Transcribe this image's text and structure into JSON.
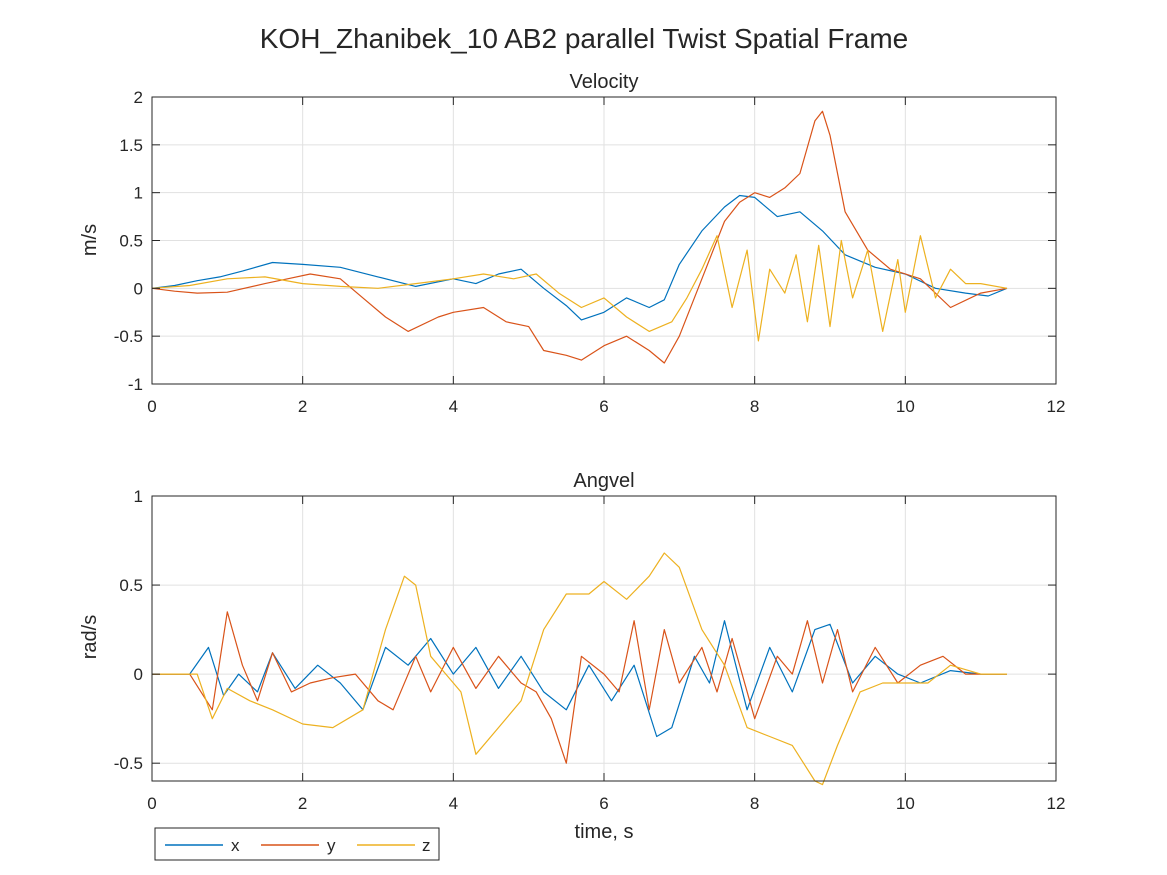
{
  "figure_title": "KOH_Zhanibek_10 AB2 parallel Twist Spatial Frame",
  "legend": {
    "entries": [
      {
        "label": "x",
        "color": "#0072BD"
      },
      {
        "label": "y",
        "color": "#D95319"
      },
      {
        "label": "z",
        "color": "#EDB120"
      }
    ],
    "placement": "bottom-left"
  },
  "chart_data": [
    {
      "type": "line",
      "title": "Velocity",
      "xlabel": "",
      "ylabel": "m/s",
      "xlim": [
        0,
        12
      ],
      "ylim": [
        -1,
        2
      ],
      "xticks": [
        0,
        2,
        4,
        6,
        8,
        10,
        12
      ],
      "yticks": [
        -1,
        -0.5,
        0,
        0.5,
        1,
        1.5,
        2
      ],
      "xtick_labels": [
        "0",
        "2",
        "4",
        "6",
        "8",
        "10",
        "12"
      ],
      "ytick_labels": [
        "-1",
        "-0.5",
        "0",
        "0.5",
        "1",
        "1.5",
        "2"
      ],
      "grid": true,
      "series": [
        {
          "name": "x",
          "color": "#0072BD",
          "x": [
            0,
            0.3,
            0.6,
            0.9,
            1.2,
            1.6,
            2.0,
            2.5,
            3.0,
            3.5,
            4.0,
            4.3,
            4.6,
            4.9,
            5.2,
            5.5,
            5.7,
            6.0,
            6.3,
            6.6,
            6.8,
            7.0,
            7.3,
            7.6,
            7.8,
            8.0,
            8.3,
            8.6,
            8.9,
            9.2,
            9.6,
            10.0,
            10.4,
            10.8,
            11.1,
            11.35
          ],
          "y": [
            0,
            0.03,
            0.08,
            0.12,
            0.18,
            0.27,
            0.25,
            0.22,
            0.12,
            0.02,
            0.1,
            0.05,
            0.15,
            0.2,
            0.0,
            -0.18,
            -0.33,
            -0.25,
            -0.1,
            -0.2,
            -0.12,
            0.25,
            0.6,
            0.85,
            0.97,
            0.95,
            0.75,
            0.8,
            0.6,
            0.35,
            0.22,
            0.15,
            0.0,
            -0.05,
            -0.08,
            0.0
          ]
        },
        {
          "name": "y",
          "color": "#D95319",
          "x": [
            0,
            0.3,
            0.6,
            1.0,
            1.5,
            1.8,
            2.1,
            2.5,
            2.8,
            3.1,
            3.4,
            3.8,
            4.0,
            4.4,
            4.7,
            5.0,
            5.2,
            5.5,
            5.7,
            6.0,
            6.3,
            6.6,
            6.8,
            7.0,
            7.3,
            7.6,
            7.8,
            8.0,
            8.2,
            8.4,
            8.6,
            8.8,
            8.9,
            9.0,
            9.2,
            9.5,
            9.8,
            10.2,
            10.6,
            11.0,
            11.35
          ],
          "y": [
            0,
            -0.03,
            -0.05,
            -0.04,
            0.05,
            0.1,
            0.15,
            0.1,
            -0.1,
            -0.3,
            -0.45,
            -0.3,
            -0.25,
            -0.2,
            -0.35,
            -0.4,
            -0.65,
            -0.7,
            -0.75,
            -0.6,
            -0.5,
            -0.65,
            -0.78,
            -0.5,
            0.1,
            0.7,
            0.9,
            1.0,
            0.95,
            1.05,
            1.2,
            1.75,
            1.85,
            1.6,
            0.8,
            0.4,
            0.2,
            0.1,
            -0.2,
            -0.05,
            0.0
          ]
        },
        {
          "name": "z",
          "color": "#EDB120",
          "x": [
            0,
            0.5,
            1.0,
            1.5,
            2.0,
            2.5,
            3.0,
            3.5,
            4.0,
            4.4,
            4.8,
            5.1,
            5.4,
            5.7,
            6.0,
            6.3,
            6.6,
            6.9,
            7.1,
            7.3,
            7.5,
            7.7,
            7.9,
            8.05,
            8.2,
            8.4,
            8.55,
            8.7,
            8.85,
            9.0,
            9.15,
            9.3,
            9.5,
            9.7,
            9.9,
            10.0,
            10.2,
            10.4,
            10.6,
            10.8,
            11.0,
            11.35
          ],
          "y": [
            0,
            0.03,
            0.1,
            0.12,
            0.05,
            0.02,
            0.0,
            0.05,
            0.1,
            0.15,
            0.1,
            0.15,
            -0.05,
            -0.2,
            -0.1,
            -0.3,
            -0.45,
            -0.35,
            -0.1,
            0.2,
            0.55,
            -0.2,
            0.4,
            -0.55,
            0.2,
            -0.05,
            0.35,
            -0.35,
            0.45,
            -0.4,
            0.5,
            -0.1,
            0.4,
            -0.45,
            0.3,
            -0.25,
            0.55,
            -0.1,
            0.2,
            0.05,
            0.05,
            0.0
          ]
        }
      ]
    },
    {
      "type": "line",
      "title": "Angvel",
      "xlabel": "time, s",
      "ylabel": "rad/s",
      "xlim": [
        0,
        12
      ],
      "ylim": [
        -0.6,
        1
      ],
      "xticks": [
        0,
        2,
        4,
        6,
        8,
        10,
        12
      ],
      "yticks": [
        -0.5,
        0,
        0.5,
        1
      ],
      "xtick_labels": [
        "0",
        "2",
        "4",
        "6",
        "8",
        "10",
        "12"
      ],
      "ytick_labels": [
        "-0.5",
        "0",
        "0.5",
        "1"
      ],
      "grid": true,
      "series": [
        {
          "name": "x",
          "color": "#0072BD",
          "x": [
            0,
            0.5,
            0.75,
            0.95,
            1.15,
            1.4,
            1.6,
            1.9,
            2.2,
            2.5,
            2.8,
            3.1,
            3.4,
            3.7,
            4.0,
            4.3,
            4.6,
            4.9,
            5.2,
            5.5,
            5.8,
            6.1,
            6.4,
            6.7,
            6.9,
            7.2,
            7.4,
            7.6,
            7.9,
            8.2,
            8.5,
            8.8,
            9.0,
            9.3,
            9.6,
            9.9,
            10.2,
            10.6,
            11.0,
            11.35
          ],
          "y": [
            0,
            0,
            0.15,
            -0.12,
            0.0,
            -0.1,
            0.12,
            -0.08,
            0.05,
            -0.05,
            -0.2,
            0.15,
            0.05,
            0.2,
            0.0,
            0.15,
            -0.08,
            0.1,
            -0.1,
            -0.2,
            0.05,
            -0.15,
            0.05,
            -0.35,
            -0.3,
            0.1,
            -0.05,
            0.3,
            -0.2,
            0.15,
            -0.1,
            0.25,
            0.28,
            -0.05,
            0.1,
            0.0,
            -0.05,
            0.02,
            0.0,
            0.0
          ]
        },
        {
          "name": "y",
          "color": "#D95319",
          "x": [
            0,
            0.5,
            0.8,
            1.0,
            1.2,
            1.4,
            1.6,
            1.85,
            2.1,
            2.4,
            2.7,
            3.0,
            3.2,
            3.5,
            3.7,
            4.0,
            4.3,
            4.6,
            4.9,
            5.1,
            5.3,
            5.5,
            5.7,
            6.0,
            6.2,
            6.4,
            6.6,
            6.8,
            7.0,
            7.3,
            7.5,
            7.7,
            8.0,
            8.3,
            8.5,
            8.7,
            8.9,
            9.1,
            9.3,
            9.6,
            9.9,
            10.2,
            10.5,
            10.8,
            11.35
          ],
          "y": [
            0,
            0,
            -0.2,
            0.35,
            0.05,
            -0.15,
            0.12,
            -0.1,
            -0.05,
            -0.02,
            0.0,
            -0.15,
            -0.2,
            0.1,
            -0.1,
            0.15,
            -0.08,
            0.1,
            -0.05,
            -0.1,
            -0.25,
            -0.5,
            0.1,
            0.0,
            -0.1,
            0.3,
            -0.2,
            0.25,
            -0.05,
            0.15,
            -0.1,
            0.2,
            -0.25,
            0.1,
            0.0,
            0.3,
            -0.05,
            0.25,
            -0.1,
            0.15,
            -0.05,
            0.05,
            0.1,
            0.0,
            0.0
          ]
        },
        {
          "name": "z",
          "color": "#EDB120",
          "x": [
            0,
            0.6,
            0.8,
            1.0,
            1.3,
            1.6,
            2.0,
            2.4,
            2.8,
            3.1,
            3.35,
            3.5,
            3.7,
            3.9,
            4.1,
            4.3,
            4.6,
            4.9,
            5.2,
            5.5,
            5.8,
            6.0,
            6.3,
            6.6,
            6.8,
            7.0,
            7.3,
            7.6,
            7.9,
            8.2,
            8.5,
            8.8,
            8.9,
            9.1,
            9.4,
            9.7,
            10.0,
            10.3,
            10.6,
            11.0,
            11.35
          ],
          "y": [
            0,
            0,
            -0.25,
            -0.08,
            -0.15,
            -0.2,
            -0.28,
            -0.3,
            -0.2,
            0.25,
            0.55,
            0.5,
            0.1,
            0.0,
            -0.1,
            -0.45,
            -0.3,
            -0.15,
            0.25,
            0.45,
            0.45,
            0.52,
            0.42,
            0.55,
            0.68,
            0.6,
            0.25,
            0.05,
            -0.3,
            -0.35,
            -0.4,
            -0.6,
            -0.62,
            -0.4,
            -0.1,
            -0.05,
            -0.05,
            -0.05,
            0.05,
            0.0,
            0.0
          ]
        }
      ]
    }
  ]
}
